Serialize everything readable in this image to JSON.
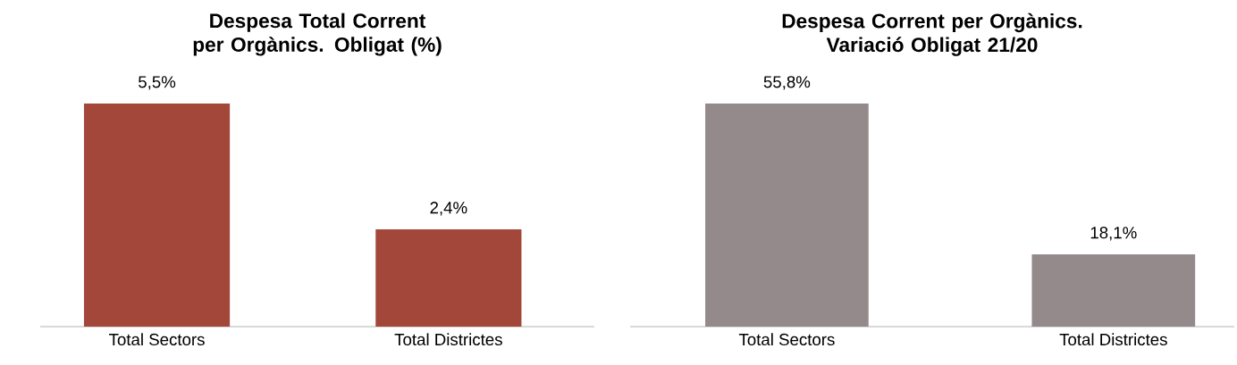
{
  "chart_data": [
    {
      "type": "bar",
      "title": "Despesa Total Corrent per Orgànics. Obligat (%)",
      "categories": [
        "Total Sectors",
        "Total Districtes"
      ],
      "values": [
        5.5,
        2.4
      ],
      "value_labels": [
        "5,5%",
        "2,4%"
      ],
      "color": "#a4473b",
      "tick_labels": "x"
    },
    {
      "type": "bar",
      "title": "Despesa Corrent per Orgànics. Variació Obligat 21/20",
      "categories": [
        "Total Sectors",
        "Total Districtes"
      ],
      "values": [
        55.8,
        18.1
      ],
      "value_labels": [
        "55,8%",
        "18,1%"
      ],
      "color": "#958a8b",
      "tick_labels": "x"
    }
  ]
}
